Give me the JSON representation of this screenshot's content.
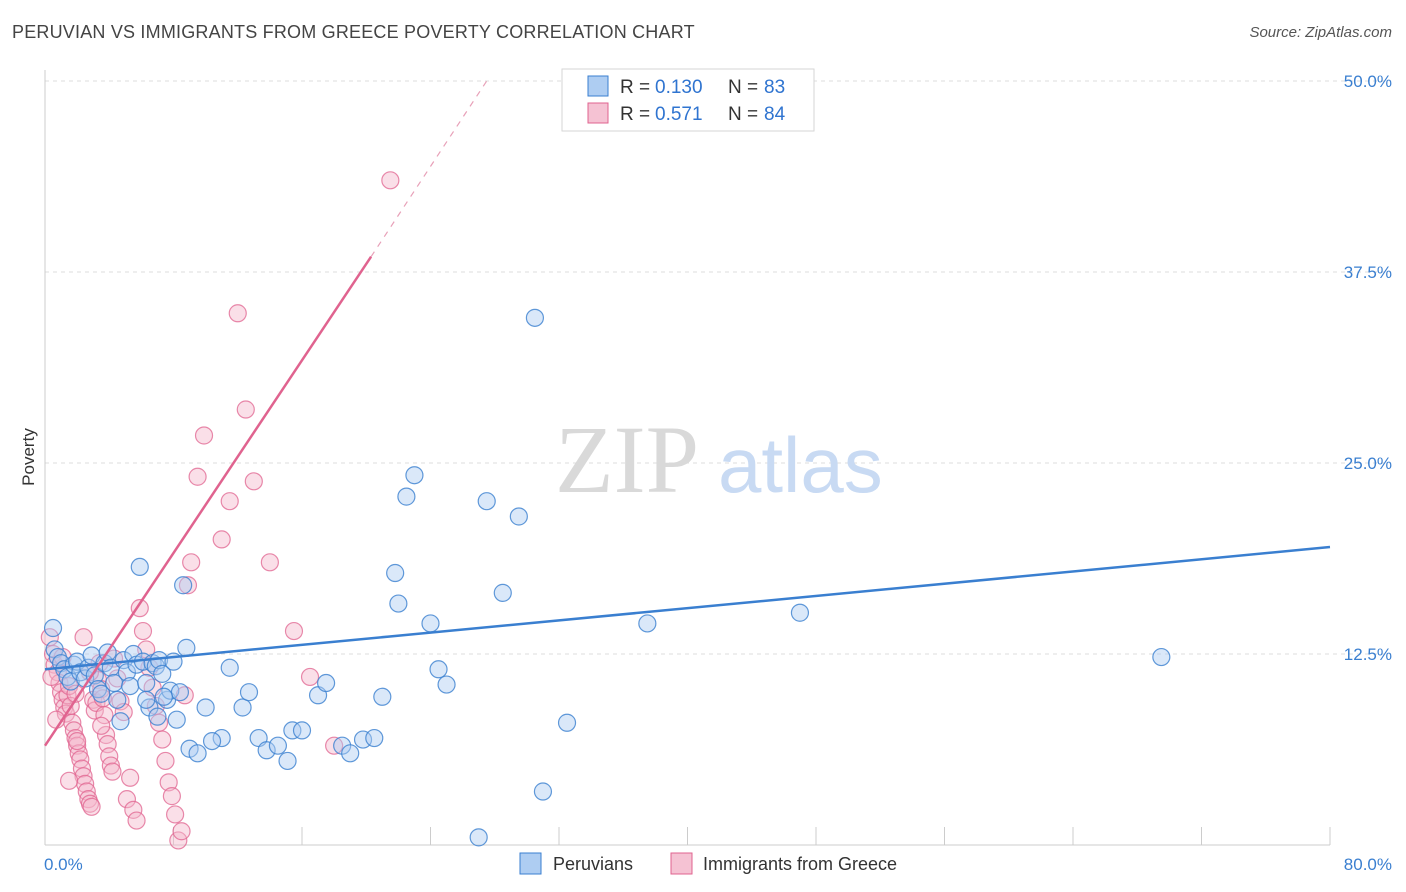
{
  "title": "PERUVIAN VS IMMIGRANTS FROM GREECE POVERTY CORRELATION CHART",
  "source": "Source: ZipAtlas.com",
  "colors": {
    "blue": "#3a7fd0",
    "blue_fill": "#aecdf2",
    "pink": "#e0638f",
    "pink_fill": "#f5b8cc",
    "grid": "#dddddd"
  },
  "chart_data": {
    "type": "scatter",
    "xlabel": "",
    "ylabel": "Poverty",
    "xlim": [
      0,
      80
    ],
    "ylim": [
      0,
      50
    ],
    "x_tick_labels": [
      "0.0%",
      "80.0%"
    ],
    "y_ticks": [
      12.5,
      25.0,
      37.5,
      50.0
    ],
    "y_tick_labels": [
      "12.5%",
      "25.0%",
      "37.5%",
      "50.0%"
    ],
    "legend": {
      "r_label": "R = ",
      "n_label": "N = ",
      "entries": [
        {
          "r": "0.130",
          "n": "83"
        },
        {
          "r": "0.571",
          "n": "84"
        }
      ]
    },
    "watermark": {
      "zip": "ZIP",
      "atlas": "atlas"
    },
    "series": [
      {
        "name": "Peruvians",
        "trend": {
          "x0": 0,
          "y0": 11.5,
          "x1": 80,
          "y1": 19.5
        },
        "points": [
          [
            0.5,
            14.2
          ],
          [
            0.6,
            12.8
          ],
          [
            0.8,
            12.3
          ],
          [
            1.0,
            11.9
          ],
          [
            1.2,
            11.5
          ],
          [
            1.4,
            11.0
          ],
          [
            1.6,
            10.7
          ],
          [
            1.8,
            11.8
          ],
          [
            2.0,
            12.0
          ],
          [
            2.2,
            11.3
          ],
          [
            2.5,
            10.9
          ],
          [
            2.7,
            11.6
          ],
          [
            2.9,
            12.4
          ],
          [
            3.1,
            11.1
          ],
          [
            3.3,
            10.2
          ],
          [
            3.5,
            9.9
          ],
          [
            3.7,
            11.9
          ],
          [
            3.9,
            12.6
          ],
          [
            4.1,
            11.6
          ],
          [
            4.3,
            10.6
          ],
          [
            4.5,
            9.5
          ],
          [
            4.7,
            8.1
          ],
          [
            4.9,
            12.1
          ],
          [
            5.1,
            11.3
          ],
          [
            5.3,
            10.4
          ],
          [
            5.5,
            12.5
          ],
          [
            5.7,
            11.8
          ],
          [
            5.9,
            18.2
          ],
          [
            6.1,
            12.0
          ],
          [
            6.3,
            10.6
          ],
          [
            6.5,
            9.0
          ],
          [
            6.7,
            11.9
          ],
          [
            6.9,
            11.7
          ],
          [
            7.1,
            12.1
          ],
          [
            7.3,
            11.2
          ],
          [
            7.6,
            9.5
          ],
          [
            7.8,
            10.1
          ],
          [
            8.0,
            12.0
          ],
          [
            8.2,
            8.2
          ],
          [
            8.4,
            10.0
          ],
          [
            8.6,
            17.0
          ],
          [
            8.8,
            12.9
          ],
          [
            6.3,
            9.5
          ],
          [
            7.0,
            8.4
          ],
          [
            7.4,
            9.7
          ],
          [
            11.0,
            7.0
          ],
          [
            9.0,
            6.3
          ],
          [
            9.5,
            6.0
          ],
          [
            10.0,
            9.0
          ],
          [
            10.4,
            6.8
          ],
          [
            11.5,
            11.6
          ],
          [
            12.3,
            9.0
          ],
          [
            12.7,
            10.0
          ],
          [
            13.3,
            7.0
          ],
          [
            13.8,
            6.2
          ],
          [
            14.5,
            6.5
          ],
          [
            15.1,
            5.5
          ],
          [
            15.4,
            7.5
          ],
          [
            17.0,
            9.8
          ],
          [
            17.5,
            10.6
          ],
          [
            18.5,
            6.5
          ],
          [
            19.0,
            6.0
          ],
          [
            19.8,
            6.9
          ],
          [
            20.5,
            7.0
          ],
          [
            21.0,
            9.7
          ],
          [
            22.0,
            15.8
          ],
          [
            23.0,
            24.2
          ],
          [
            22.5,
            22.8
          ],
          [
            21.8,
            17.8
          ],
          [
            24.0,
            14.5
          ],
          [
            24.5,
            11.5
          ],
          [
            25.0,
            10.5
          ],
          [
            27.5,
            22.5
          ],
          [
            28.5,
            16.5
          ],
          [
            29.5,
            21.5
          ],
          [
            31.0,
            3.5
          ],
          [
            32.5,
            8.0
          ],
          [
            37.5,
            14.5
          ],
          [
            47.0,
            15.2
          ],
          [
            69.5,
            12.3
          ],
          [
            16.0,
            7.5
          ],
          [
            27.0,
            0.5
          ],
          [
            30.5,
            34.5
          ]
        ]
      },
      {
        "name": "Immigrants from Greece",
        "trend": {
          "x0": 0,
          "y0": 6.5,
          "x1": 20.3,
          "y1": 38.5
        },
        "trend_dashed": {
          "x0": 20.3,
          "y0": 38.5,
          "x1": 27.5,
          "y1": 50.0
        },
        "points": [
          [
            0.3,
            13.6
          ],
          [
            0.5,
            12.5
          ],
          [
            0.6,
            11.8
          ],
          [
            0.8,
            11.3
          ],
          [
            0.9,
            10.6
          ],
          [
            1.0,
            10.0
          ],
          [
            1.1,
            9.5
          ],
          [
            1.2,
            9.0
          ],
          [
            1.3,
            8.6
          ],
          [
            1.4,
            9.8
          ],
          [
            1.5,
            10.4
          ],
          [
            1.6,
            9.1
          ],
          [
            1.7,
            8.0
          ],
          [
            1.8,
            7.5
          ],
          [
            1.9,
            7.0
          ],
          [
            2.0,
            6.5
          ],
          [
            2.1,
            6.0
          ],
          [
            2.2,
            5.6
          ],
          [
            2.3,
            5.0
          ],
          [
            2.4,
            4.5
          ],
          [
            2.5,
            4.0
          ],
          [
            2.6,
            3.5
          ],
          [
            2.7,
            3.0
          ],
          [
            2.8,
            2.7
          ],
          [
            2.9,
            2.5
          ],
          [
            3.0,
            9.5
          ],
          [
            3.1,
            8.8
          ],
          [
            3.2,
            9.3
          ],
          [
            3.3,
            10.8
          ],
          [
            3.4,
            11.9
          ],
          [
            3.5,
            10.2
          ],
          [
            3.6,
            9.6
          ],
          [
            3.7,
            8.5
          ],
          [
            3.8,
            7.2
          ],
          [
            3.9,
            6.6
          ],
          [
            4.0,
            5.8
          ],
          [
            4.1,
            5.2
          ],
          [
            4.2,
            4.8
          ],
          [
            4.3,
            12.2
          ],
          [
            4.5,
            10.9
          ],
          [
            4.7,
            9.4
          ],
          [
            4.9,
            8.7
          ],
          [
            5.1,
            3.0
          ],
          [
            5.3,
            4.4
          ],
          [
            5.5,
            2.3
          ],
          [
            5.7,
            1.6
          ],
          [
            5.9,
            15.5
          ],
          [
            6.1,
            14.0
          ],
          [
            6.3,
            12.8
          ],
          [
            6.5,
            11.6
          ],
          [
            6.7,
            10.3
          ],
          [
            6.9,
            9.1
          ],
          [
            7.1,
            8.0
          ],
          [
            7.3,
            6.9
          ],
          [
            7.5,
            5.5
          ],
          [
            7.7,
            4.1
          ],
          [
            7.9,
            3.2
          ],
          [
            8.1,
            2.0
          ],
          [
            8.3,
            0.3
          ],
          [
            8.5,
            0.9
          ],
          [
            8.7,
            9.8
          ],
          [
            8.9,
            17.0
          ],
          [
            9.1,
            18.5
          ],
          [
            9.5,
            24.1
          ],
          [
            9.9,
            26.8
          ],
          [
            11.0,
            20.0
          ],
          [
            11.5,
            22.5
          ],
          [
            12.0,
            34.8
          ],
          [
            12.5,
            28.5
          ],
          [
            13.0,
            23.8
          ],
          [
            14.0,
            18.5
          ],
          [
            15.5,
            14.0
          ],
          [
            16.5,
            11.0
          ],
          [
            18.0,
            6.5
          ],
          [
            21.5,
            43.5
          ],
          [
            2.0,
            6.8
          ],
          [
            1.5,
            4.2
          ],
          [
            2.4,
            13.6
          ],
          [
            1.1,
            12.3
          ],
          [
            0.4,
            11.0
          ],
          [
            0.7,
            8.2
          ],
          [
            1.9,
            9.9
          ],
          [
            2.8,
            11.3
          ],
          [
            3.5,
            7.8
          ]
        ]
      }
    ]
  }
}
